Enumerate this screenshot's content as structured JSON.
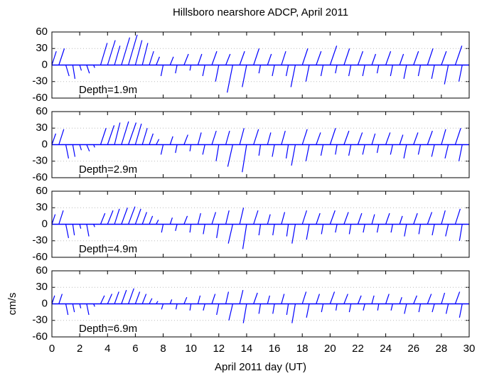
{
  "chart_data": [
    {
      "type": "stick",
      "title": "Hillsboro nearshore ADCP, April 2011",
      "annotation": "Depth=1.9m",
      "color": "#0000ff",
      "grid": true,
      "xlim": [
        0,
        30
      ],
      "xticks": [
        0,
        2,
        4,
        6,
        8,
        10,
        12,
        14,
        16,
        18,
        20,
        22,
        24,
        26,
        28,
        30
      ],
      "ylim": [
        -60,
        60
      ],
      "yticks": [
        -60,
        -30,
        0,
        30,
        60
      ],
      "x": [
        0,
        0.5,
        1,
        1.5,
        2,
        2.5,
        3,
        3.5,
        4,
        4.5,
        5,
        5.5,
        6,
        6.5,
        7,
        7.5,
        8,
        8.5,
        9,
        9.5,
        10,
        10.5,
        11,
        11.5,
        12,
        12.5,
        13,
        13.5,
        14,
        14.5,
        15,
        15.5,
        16,
        16.5,
        17,
        17.5,
        18,
        18.5,
        19,
        19.5,
        20,
        20.5,
        21,
        21.5,
        22,
        22.5,
        23,
        23.5,
        24,
        24.5,
        25,
        25.5,
        26,
        26.5,
        27,
        27.5,
        28,
        28.5,
        29,
        29.5
      ],
      "u": [
        8,
        10,
        6,
        4,
        3,
        5,
        2,
        12,
        14,
        10,
        15,
        16,
        12,
        10,
        8,
        6,
        -4,
        6,
        -3,
        8,
        -2,
        7,
        -4,
        9,
        -6,
        8,
        -10,
        9,
        -8,
        10,
        -3,
        7,
        -4,
        8,
        -4,
        -8,
        10,
        -6,
        9,
        -4,
        12,
        -3,
        10,
        -4,
        9,
        -4,
        7,
        -3,
        9,
        -4,
        7,
        -5,
        9,
        -4,
        10,
        -5,
        9,
        -7,
        12,
        -6
      ],
      "v": [
        25,
        30,
        -20,
        -25,
        -10,
        -15,
        -5,
        40,
        45,
        35,
        50,
        55,
        45,
        40,
        25,
        15,
        -20,
        15,
        -15,
        20,
        -10,
        20,
        -20,
        25,
        -30,
        20,
        -50,
        25,
        -40,
        30,
        -15,
        20,
        -20,
        25,
        -20,
        -40,
        30,
        -30,
        25,
        -20,
        35,
        -15,
        30,
        -20,
        25,
        -20,
        20,
        -15,
        25,
        -20,
        20,
        -25,
        25,
        -20,
        30,
        -25,
        25,
        -35,
        35,
        -30
      ]
    },
    {
      "type": "stick",
      "annotation": "Depth=2.9m",
      "color": "#0000ff",
      "grid": true,
      "xlim": [
        0,
        30
      ],
      "xticks": [
        0,
        2,
        4,
        6,
        8,
        10,
        12,
        14,
        16,
        18,
        20,
        22,
        24,
        26,
        28,
        30
      ],
      "ylim": [
        -60,
        60
      ],
      "yticks": [
        -60,
        -30,
        0,
        30,
        60
      ],
      "x": [
        0,
        0.5,
        1,
        1.5,
        2,
        2.5,
        3,
        3.5,
        4,
        4.5,
        5,
        5.5,
        6,
        6.5,
        7,
        7.5,
        8,
        8.5,
        9,
        9.5,
        10,
        10.5,
        11,
        11.5,
        12,
        12.5,
        13,
        13.5,
        14,
        14.5,
        15,
        15.5,
        16,
        16.5,
        17,
        17.5,
        18,
        18.5,
        19,
        19.5,
        20,
        20.5,
        21,
        21.5,
        22,
        22.5,
        23,
        23.5,
        24,
        24.5,
        25,
        25.5,
        26,
        26.5,
        27,
        27.5,
        28,
        28.5,
        29,
        29.5
      ],
      "u": [
        7,
        9,
        5,
        4,
        3,
        5,
        2,
        10,
        12,
        10,
        13,
        14,
        11,
        9,
        7,
        5,
        -4,
        5,
        -3,
        7,
        -2,
        6,
        -4,
        8,
        -5,
        7,
        -9,
        8,
        -8,
        9,
        -3,
        6,
        -4,
        7,
        -4,
        -7,
        9,
        -6,
        8,
        -4,
        10,
        -3,
        9,
        -4,
        8,
        -4,
        6,
        -3,
        8,
        -4,
        6,
        -5,
        8,
        -4,
        9,
        -5,
        8,
        -6,
        10,
        -6
      ],
      "v": [
        20,
        28,
        -25,
        -22,
        -10,
        -12,
        -5,
        30,
        35,
        40,
        42,
        40,
        38,
        30,
        20,
        10,
        -18,
        15,
        -15,
        18,
        -12,
        22,
        -18,
        25,
        -30,
        25,
        -40,
        30,
        -50,
        28,
        -20,
        22,
        -22,
        25,
        -25,
        -38,
        28,
        -30,
        22,
        -20,
        30,
        -18,
        25,
        -20,
        22,
        -18,
        20,
        -15,
        22,
        -18,
        18,
        -25,
        22,
        -18,
        25,
        -22,
        28,
        -25,
        30,
        -30
      ]
    },
    {
      "type": "stick",
      "annotation": "Depth=4.9m",
      "color": "#0000ff",
      "grid": true,
      "xlim": [
        0,
        30
      ],
      "xticks": [
        0,
        2,
        4,
        6,
        8,
        10,
        12,
        14,
        16,
        18,
        20,
        22,
        24,
        26,
        28,
        30
      ],
      "ylim": [
        -60,
        60
      ],
      "yticks": [
        -60,
        -30,
        0,
        30,
        60
      ],
      "x": [
        0,
        0.5,
        1,
        1.5,
        2,
        2.5,
        3,
        3.5,
        4,
        4.5,
        5,
        5.5,
        6,
        6.5,
        7,
        7.5,
        8,
        8.5,
        9,
        9.5,
        10,
        10.5,
        11,
        11.5,
        12,
        12.5,
        13,
        13.5,
        14,
        14.5,
        15,
        15.5,
        16,
        16.5,
        17,
        17.5,
        18,
        18.5,
        19,
        19.5,
        20,
        20.5,
        21,
        21.5,
        22,
        22.5,
        23,
        23.5,
        24,
        24.5,
        25,
        25.5,
        26,
        26.5,
        27,
        27.5,
        28,
        28.5,
        29,
        29.5
      ],
      "u": [
        6,
        8,
        5,
        3,
        2,
        4,
        2,
        8,
        10,
        9,
        11,
        12,
        10,
        8,
        6,
        4,
        -3,
        4,
        -3,
        6,
        -2,
        5,
        -3,
        7,
        -4,
        6,
        -8,
        7,
        -7,
        8,
        -3,
        5,
        -3,
        6,
        -3,
        -6,
        8,
        -5,
        7,
        -3,
        9,
        -3,
        8,
        -3,
        7,
        -3,
        5,
        -3,
        7,
        -3,
        5,
        -4,
        7,
        -3,
        8,
        -4,
        7,
        -5,
        9,
        -5
      ],
      "v": [
        18,
        25,
        -25,
        -20,
        -8,
        -22,
        -5,
        20,
        25,
        28,
        30,
        32,
        28,
        22,
        15,
        8,
        -15,
        12,
        -12,
        15,
        -15,
        20,
        -18,
        22,
        -25,
        25,
        -35,
        30,
        -45,
        25,
        -20,
        18,
        -20,
        22,
        -22,
        -35,
        25,
        -28,
        20,
        -18,
        25,
        -15,
        22,
        -18,
        20,
        -15,
        18,
        -15,
        20,
        -15,
        15,
        -22,
        20,
        -18,
        22,
        -20,
        25,
        -22,
        28,
        -30
      ]
    },
    {
      "type": "stick",
      "annotation": "Depth=6.9m",
      "color": "#0000ff",
      "grid": true,
      "x_label": "April 2011 day (UT)",
      "y_label": "cm/s",
      "xlim": [
        0,
        30
      ],
      "xticks": [
        0,
        2,
        4,
        6,
        8,
        10,
        12,
        14,
        16,
        18,
        20,
        22,
        24,
        26,
        28,
        30
      ],
      "ylim": [
        -60,
        60
      ],
      "yticks": [
        -60,
        -30,
        0,
        30,
        60
      ],
      "x": [
        0,
        0.5,
        1,
        1.5,
        2,
        2.5,
        3,
        3.5,
        4,
        4.5,
        5,
        5.5,
        6,
        6.5,
        7,
        7.5,
        8,
        8.5,
        9,
        9.5,
        10,
        10.5,
        11,
        11.5,
        12,
        12.5,
        13,
        13.5,
        14,
        14.5,
        15,
        15.5,
        16,
        16.5,
        17,
        17.5,
        18,
        18.5,
        19,
        19.5,
        20,
        20.5,
        21,
        21.5,
        22,
        22.5,
        23,
        23.5,
        24,
        24.5,
        25,
        25.5,
        26,
        26.5,
        27,
        27.5,
        28,
        28.5,
        29,
        29.5
      ],
      "u": [
        5,
        6,
        4,
        3,
        2,
        4,
        2,
        7,
        8,
        8,
        9,
        10,
        8,
        7,
        5,
        3,
        -3,
        3,
        -2,
        5,
        -2,
        4,
        -3,
        6,
        -4,
        5,
        -7,
        6,
        -6,
        7,
        -3,
        4,
        -3,
        5,
        -3,
        -6,
        7,
        -5,
        6,
        -3,
        8,
        -2,
        7,
        -3,
        6,
        -3,
        4,
        -2,
        6,
        -3,
        4,
        -4,
        6,
        -3,
        7,
        -4,
        6,
        -4,
        8,
        -5
      ],
      "v": [
        15,
        18,
        -20,
        -15,
        -8,
        -20,
        -5,
        15,
        18,
        22,
        25,
        28,
        22,
        18,
        10,
        5,
        -10,
        8,
        -10,
        12,
        -12,
        15,
        -12,
        18,
        -20,
        22,
        -30,
        25,
        -35,
        20,
        -18,
        15,
        -18,
        18,
        -20,
        -35,
        22,
        -25,
        18,
        -15,
        22,
        -12,
        18,
        -15,
        15,
        -12,
        15,
        -12,
        18,
        -12,
        12,
        -18,
        15,
        -15,
        18,
        -15,
        20,
        -18,
        22,
        -25
      ]
    }
  ]
}
